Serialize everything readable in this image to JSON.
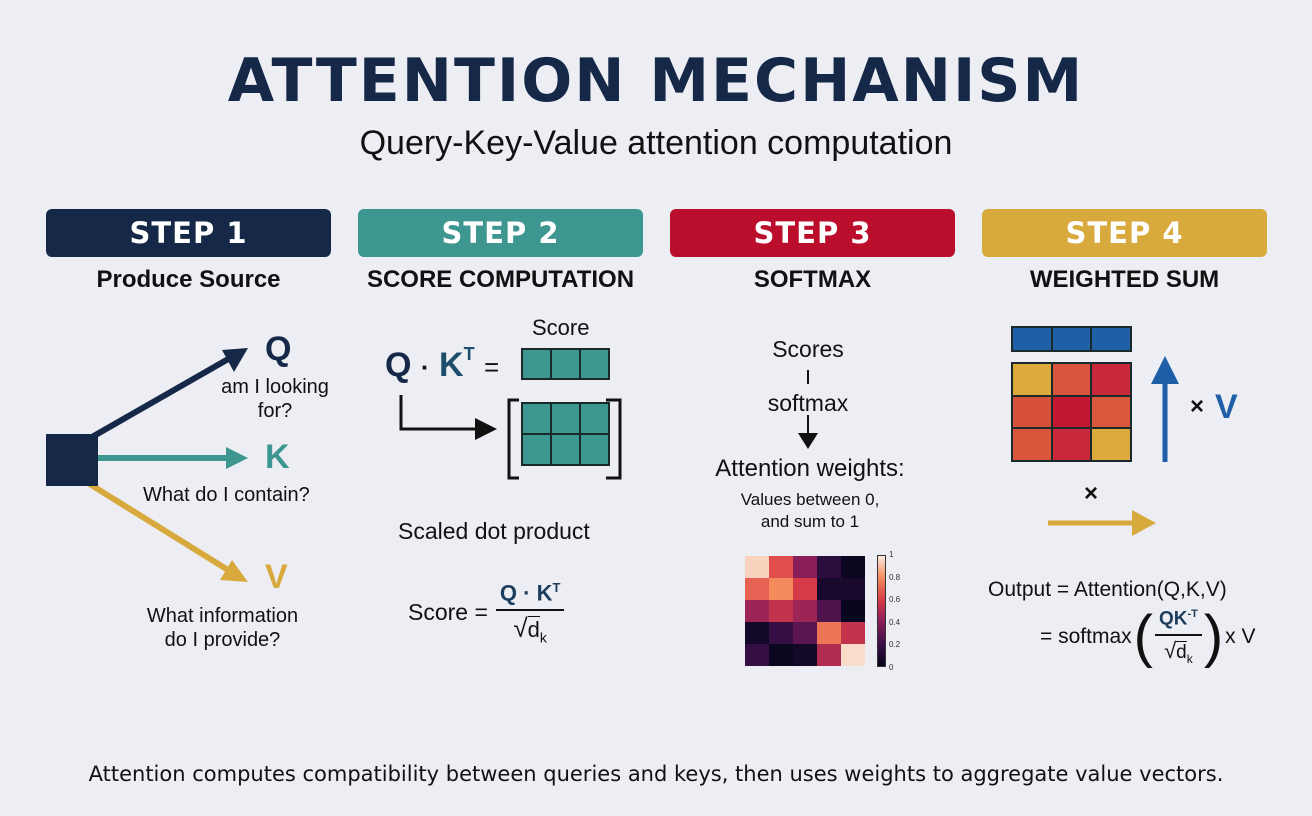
{
  "header": {
    "title": "ATTENTION MECHANISM",
    "subtitle": "Query-Key-Value attention computation"
  },
  "colors": {
    "navy": "#152848",
    "teal": "#3d968f",
    "red": "#bb0e2c",
    "gold": "#d8a93c",
    "blue": "#1f5fa8",
    "background": "#eceef3"
  },
  "steps": [
    {
      "label": "STEP 1",
      "subtitle": "Produce Source"
    },
    {
      "label": "STEP 2",
      "subtitle": "SCORE COMPUTATION"
    },
    {
      "label": "STEP 3",
      "subtitle": "SOFTMAX"
    },
    {
      "label": "STEP 4",
      "subtitle": "WEIGHTED SUM"
    }
  ],
  "step1": {
    "q_letter": "Q",
    "q_desc_line1": "am I looking",
    "q_desc_line2": "for?",
    "k_letter": "K",
    "k_desc": "What do I contain?",
    "v_letter": "V",
    "v_desc_line1": "What information",
    "v_desc_line2": "do I provide?"
  },
  "step2": {
    "score_label": "Score",
    "eq_q": "Q",
    "eq_dot": "·",
    "eq_k": "K",
    "eq_t": "T",
    "eq_equals": "=",
    "caption": "Scaled dot product",
    "formula_lhs": "Score =",
    "formula_num": "Q · K",
    "formula_num_sup": "T",
    "formula_den": "d",
    "formula_den_sub": "k",
    "sqrt": "√"
  },
  "step3": {
    "scores": "Scores",
    "softmax": "softmax",
    "weights_title": "Attention weights:",
    "weights_desc_line1": "Values between 0,",
    "weights_desc_line2": "and sum to 1",
    "colorbar_ticks": [
      "1",
      "0.8",
      "0.6",
      "0.4",
      "0.2",
      "0"
    ]
  },
  "step4": {
    "times": "×",
    "v_letter": "V",
    "times2": "×",
    "output_line1": "Output = Attention(Q,K,V)",
    "output_eq": "= softmax",
    "output_num": "QK",
    "output_num_sup": "-T",
    "output_den": "d",
    "output_den_sub": "k",
    "output_tail": "x V",
    "sqrt": "√"
  },
  "chart_data": {
    "type": "heatmap",
    "title": "Attention weights",
    "rows": 5,
    "cols": 5,
    "values": [
      [
        0.95,
        0.65,
        0.4,
        0.15,
        0.03
      ],
      [
        0.7,
        0.8,
        0.6,
        0.08,
        0.08
      ],
      [
        0.45,
        0.55,
        0.45,
        0.25,
        0.02
      ],
      [
        0.06,
        0.18,
        0.28,
        0.75,
        0.55
      ],
      [
        0.18,
        0.03,
        0.06,
        0.5,
        0.97
      ]
    ],
    "colorbar": {
      "min": 0,
      "max": 1,
      "ticks": [
        0,
        0.2,
        0.4,
        0.6,
        0.8,
        1
      ]
    }
  },
  "footer": {
    "text": "Attention computes compatibility between queries and keys, then uses weights to aggregate value vectors."
  }
}
